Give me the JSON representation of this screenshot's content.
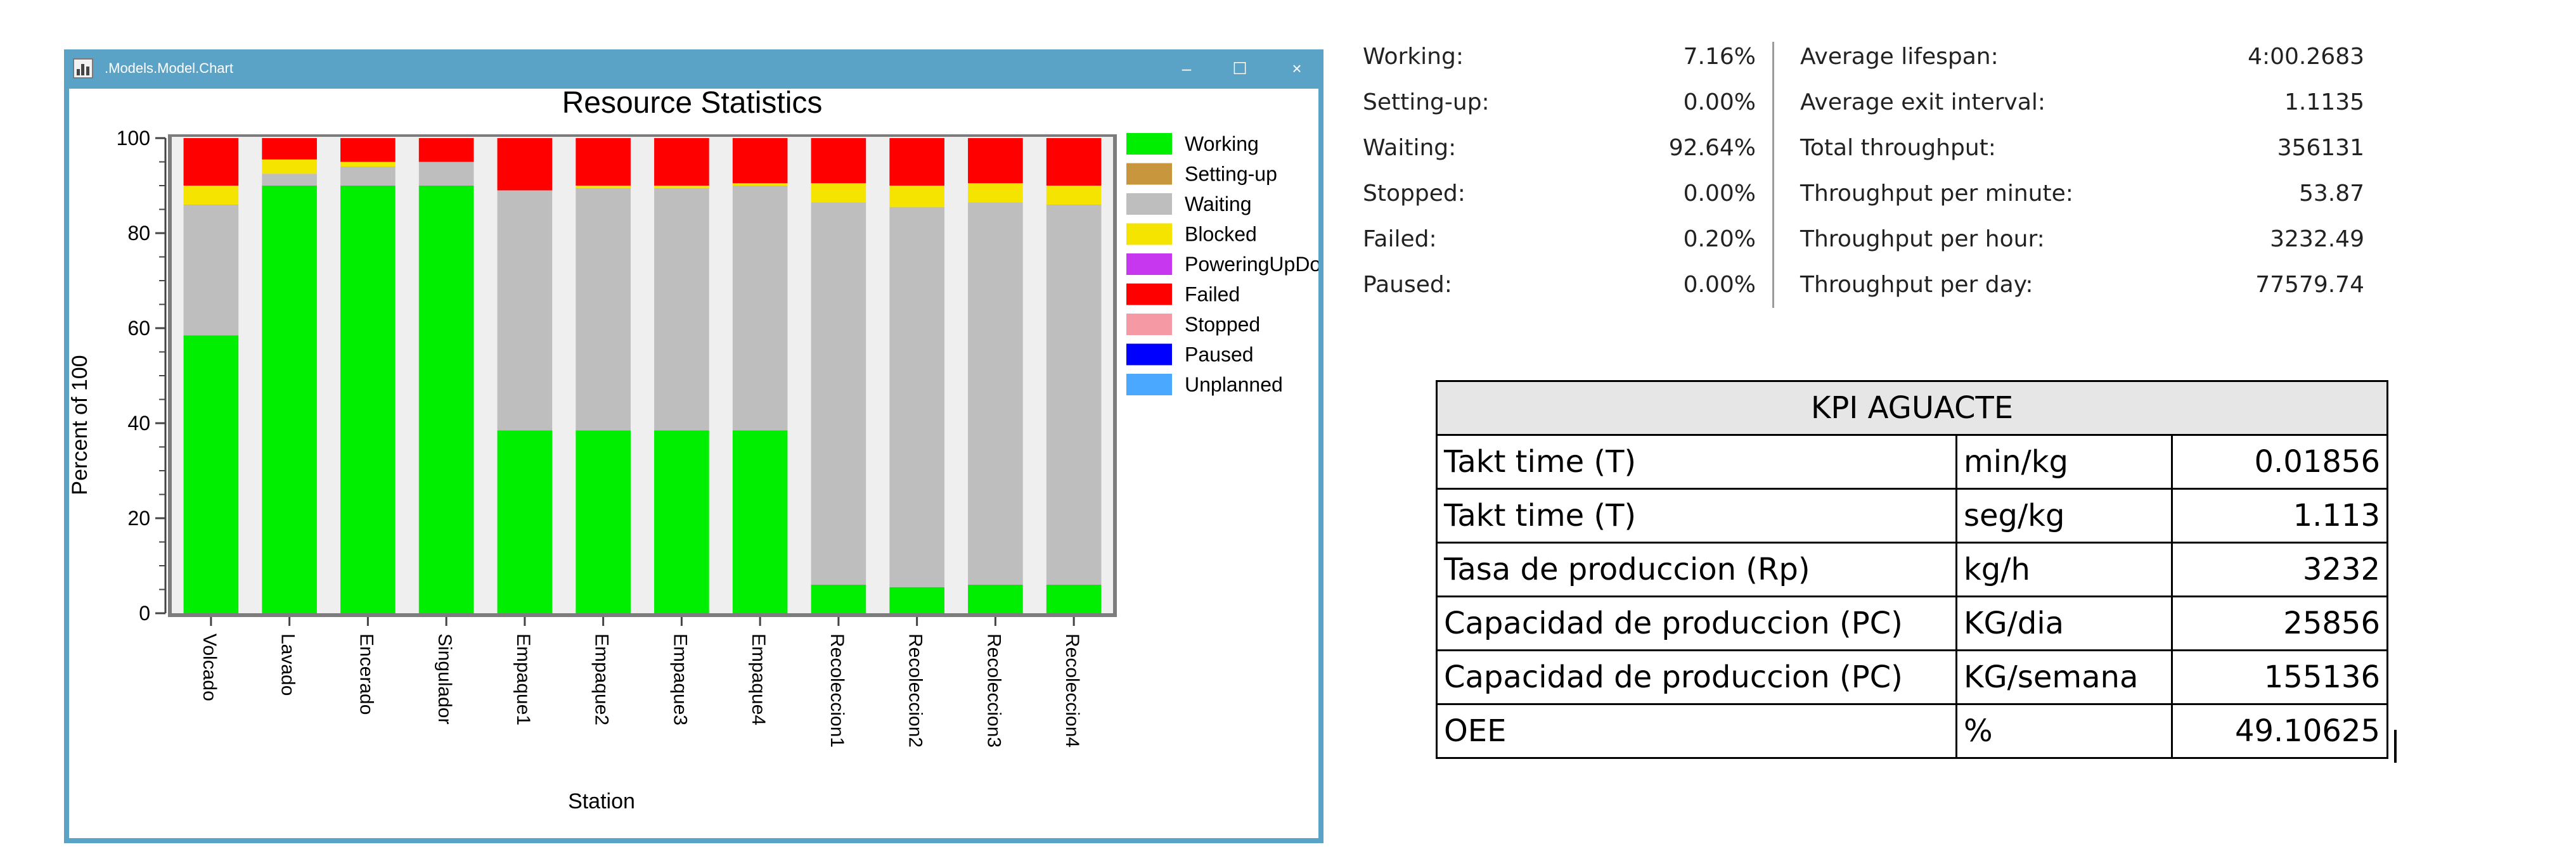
{
  "window": {
    "title": ".Models.Model.Chart",
    "minimize_glyph": "–",
    "maximize_glyph": "☐",
    "close_glyph": "×"
  },
  "chart_data": {
    "type": "bar",
    "stacked": true,
    "title": "Resource Statistics",
    "xlabel": "Station",
    "ylabel": "Percent of 100",
    "ylim": [
      0,
      100
    ],
    "yticks": [
      0,
      20,
      40,
      60,
      80,
      100
    ],
    "grid": false,
    "legend_position": "right",
    "categories": [
      "Volcado",
      "Lavado",
      "Encerado",
      "Singulador",
      "Empaque1",
      "Empaque2",
      "Empaque3",
      "Empaque4",
      "Recoleccion1",
      "Recoleccion2",
      "Recoleccion3",
      "Recoleccion4"
    ],
    "series": [
      {
        "name": "Working",
        "color": "#00ee00",
        "values": [
          58.5,
          90,
          90,
          90,
          38.5,
          38.5,
          38.5,
          38.5,
          6,
          5.5,
          6,
          6
        ]
      },
      {
        "name": "Setting-up",
        "color": "#c8963c",
        "values": [
          0,
          0,
          0,
          0,
          0,
          0,
          0,
          0,
          0,
          0,
          0,
          0
        ]
      },
      {
        "name": "Waiting",
        "color": "#bebebe",
        "values": [
          27.5,
          2.5,
          4,
          5,
          50.5,
          51,
          51,
          51.5,
          80.5,
          80,
          80.5,
          80
        ]
      },
      {
        "name": "Blocked",
        "color": "#f5e400",
        "values": [
          4,
          3,
          1,
          0,
          0,
          0.5,
          0.5,
          0.5,
          4,
          4.5,
          4,
          4
        ]
      },
      {
        "name": "PoweringUpDown",
        "color": "#c837f0",
        "values": [
          0,
          0,
          0,
          0,
          0,
          0,
          0,
          0,
          0,
          0,
          0,
          0
        ]
      },
      {
        "name": "Failed",
        "color": "#ff0000",
        "values": [
          10,
          4.5,
          5,
          5,
          11,
          10,
          10,
          9.5,
          9.5,
          10,
          9.5,
          10
        ]
      },
      {
        "name": "Stopped",
        "color": "#f59aa5",
        "values": [
          0,
          0,
          0,
          0,
          0,
          0,
          0,
          0,
          0,
          0,
          0,
          0
        ]
      },
      {
        "name": "Paused",
        "color": "#0000ff",
        "values": [
          0,
          0,
          0,
          0,
          0,
          0,
          0,
          0,
          0,
          0,
          0,
          0
        ]
      },
      {
        "name": "Unplanned",
        "color": "#4aa8ff",
        "values": [
          0,
          0,
          0,
          0,
          0,
          0,
          0,
          0,
          0,
          0,
          0,
          0
        ]
      }
    ]
  },
  "stats": {
    "left": [
      {
        "label": "Working:",
        "value": "7.16%"
      },
      {
        "label": "Setting-up:",
        "value": "0.00%"
      },
      {
        "label": "Waiting:",
        "value": "92.64%"
      },
      {
        "label": "Stopped:",
        "value": "0.00%"
      },
      {
        "label": "Failed:",
        "value": "0.20%"
      },
      {
        "label": "Paused:",
        "value": "0.00%"
      }
    ],
    "right": [
      {
        "label": "Average lifespan:",
        "value": "4:00.2683"
      },
      {
        "label": "Average exit interval:",
        "value": "1.1135"
      },
      {
        "label": "Total throughput:",
        "value": "356131"
      },
      {
        "label": "Throughput per minute:",
        "value": "53.87"
      },
      {
        "label": "Throughput per hour:",
        "value": "3232.49"
      },
      {
        "label": "Throughput per day:",
        "value": "77579.74"
      }
    ]
  },
  "kpi": {
    "title": "KPI AGUACTE",
    "rows": [
      {
        "name": "Takt time (T)",
        "unit": "min/kg",
        "value": "0.01856"
      },
      {
        "name": "Takt time (T)",
        "unit": "seg/kg",
        "value": "1.113"
      },
      {
        "name": "Tasa de produccion (Rp)",
        "unit": "kg/h",
        "value": "3232"
      },
      {
        "name": "Capacidad de produccion (PC)",
        "unit": "KG/dia",
        "value": "25856"
      },
      {
        "name": "Capacidad de produccion (PC)",
        "unit": "KG/semana",
        "value": "155136"
      },
      {
        "name": "OEE",
        "unit": "%",
        "value": "49.10625"
      }
    ]
  }
}
